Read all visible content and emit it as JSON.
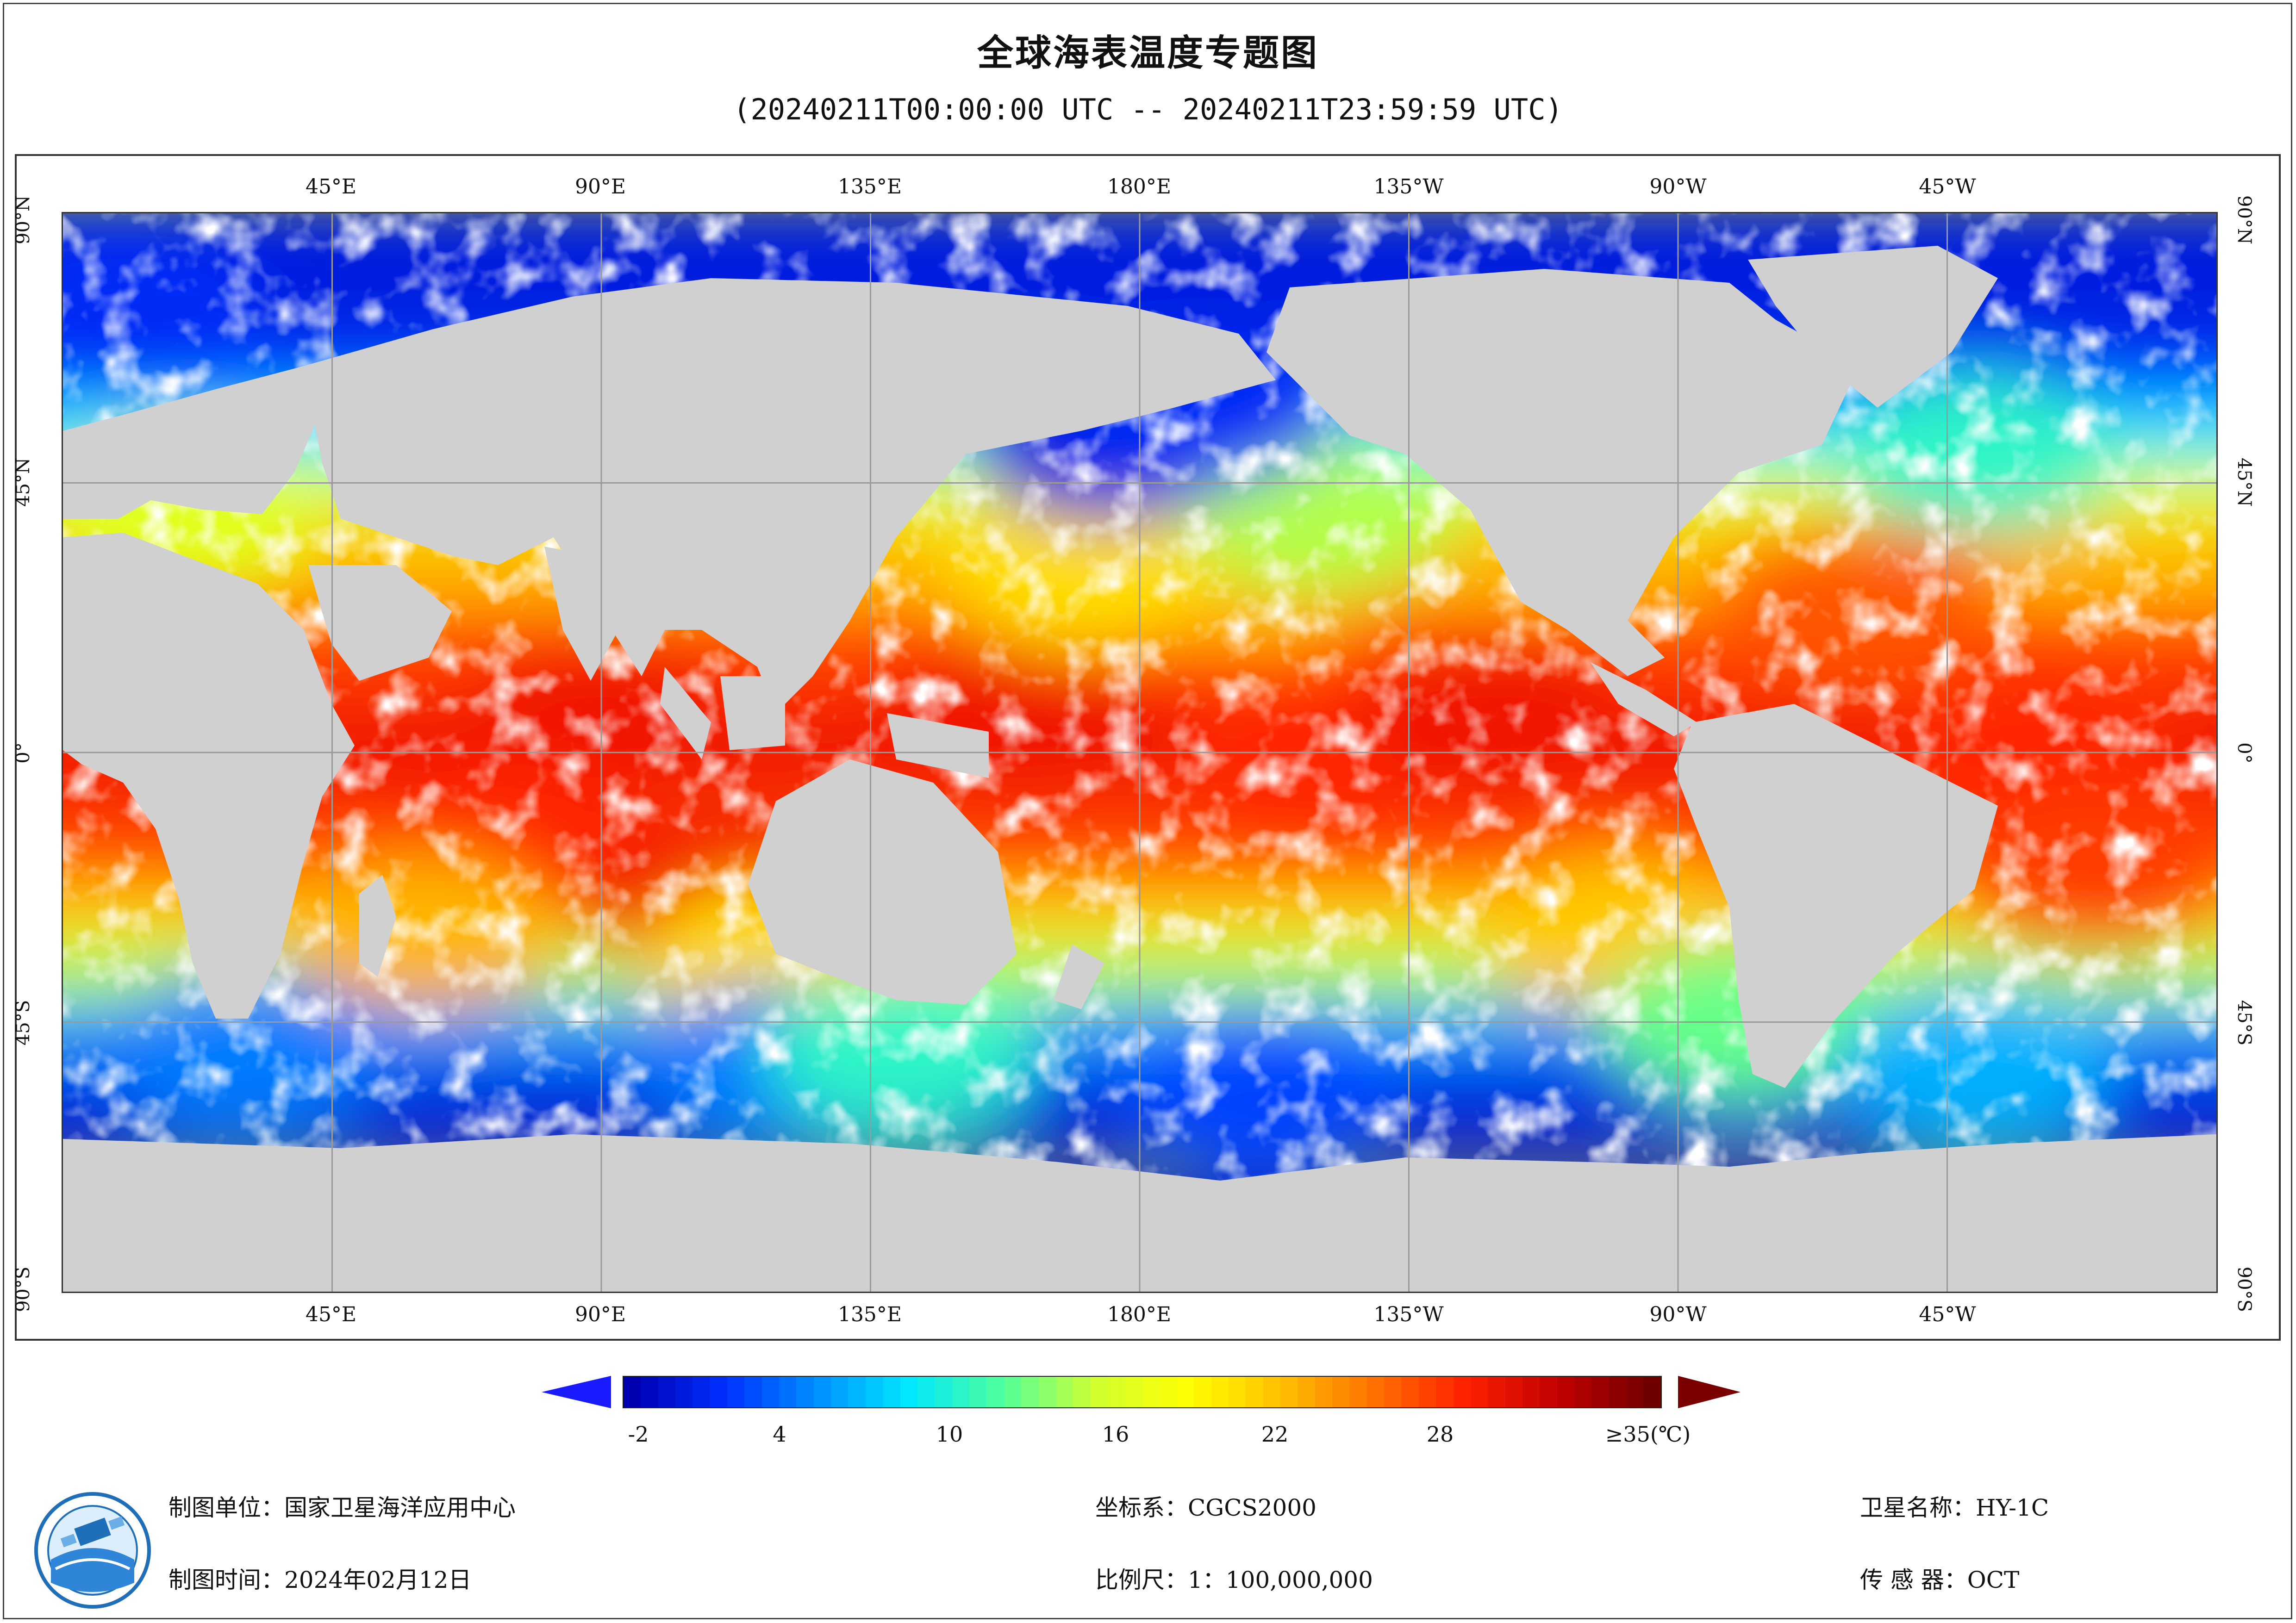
{
  "title": "全球海表温度专题图",
  "subtitle": "(20240211T00:00:00 UTC -- 20240211T23:59:59 UTC)",
  "map": {
    "lon_labels": [
      "45°E",
      "90°E",
      "135°E",
      "180°E",
      "135°W",
      "90°W",
      "45°W"
    ],
    "lat_labels": [
      "90°N",
      "45°N",
      "0°",
      "45°S",
      "90°S"
    ],
    "colors": {
      "land": "#d0d0d0",
      "cloud": "#ffffff",
      "grid": "#9a9a9a"
    },
    "sst_regions": [
      {
        "lon": 90,
        "lat": 5,
        "value": 29
      },
      {
        "lon": 75,
        "lat": -15,
        "value": 28
      },
      {
        "lon": 110,
        "lat": -25,
        "value": 29
      },
      {
        "lon": 160,
        "lat": 5,
        "value": 29
      },
      {
        "lon": -150,
        "lat": 0,
        "value": 28
      },
      {
        "lon": -120,
        "lat": 5,
        "value": 29
      },
      {
        "lon": -30,
        "lat": 0,
        "value": 28
      },
      {
        "lon": -20,
        "lat": -20,
        "value": 27
      },
      {
        "lon": -60,
        "lat": 25,
        "value": 26
      },
      {
        "lon": -160,
        "lat": 30,
        "value": 22
      },
      {
        "lon": 170,
        "lat": 30,
        "value": 20
      },
      {
        "lon": -150,
        "lat": 40,
        "value": 14
      },
      {
        "lon": 175,
        "lat": 52,
        "value": 0
      },
      {
        "lon": -170,
        "lat": 58,
        "value": 1
      },
      {
        "lon": -40,
        "lat": 50,
        "value": 10
      },
      {
        "lon": 10,
        "lat": 75,
        "value": 1
      },
      {
        "lon": 20,
        "lat": 40,
        "value": 16
      },
      {
        "lon": 60,
        "lat": -30,
        "value": 22
      },
      {
        "lon": 120,
        "lat": -35,
        "value": 20
      },
      {
        "lon": -100,
        "lat": -30,
        "value": 21
      },
      {
        "lon": -80,
        "lat": -45,
        "value": 12
      },
      {
        "lon": 30,
        "lat": -50,
        "value": 4
      },
      {
        "lon": 120,
        "lat": -52,
        "value": 4
      },
      {
        "lon": -160,
        "lat": -58,
        "value": 2
      },
      {
        "lon": -40,
        "lat": -52,
        "value": 6
      },
      {
        "lon": 140,
        "lat": -50,
        "value": 10
      }
    ]
  },
  "colorbar": {
    "ticks": [
      "-2",
      "4",
      "10",
      "16",
      "22",
      "28",
      "≥35(℃)"
    ],
    "min": -2,
    "max": 35,
    "gradient_stops": [
      "#0000b0",
      "#0030ff",
      "#0090ff",
      "#00e8ff",
      "#50ff9a",
      "#d0ff30",
      "#ffff00",
      "#ffc000",
      "#ff7000",
      "#ff2000",
      "#c00000",
      "#700000"
    ],
    "under_color": "#1a1aff",
    "over_color": "#7a0000"
  },
  "footer": {
    "producer_label": "制图单位：国家卫星海洋应用中心",
    "date_label": "制图时间：2024年02月12日",
    "crs_label": "坐标系：CGCS2000",
    "scale_label": "比例尺：1：100,000,000",
    "satellite_label": "卫星名称：HY-1C",
    "sensor_label": "传  感  器：OCT"
  }
}
